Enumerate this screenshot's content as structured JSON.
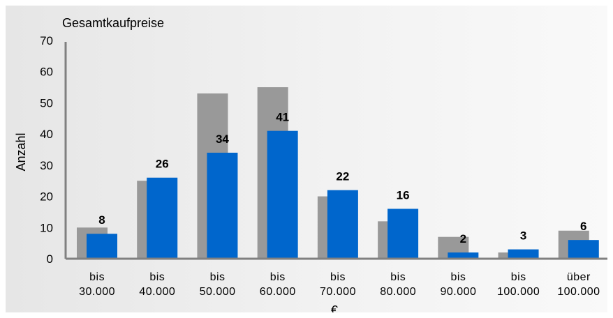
{
  "chart_data": {
    "type": "bar",
    "title": "Gesamtkaufpreise",
    "ylabel": "Anzahl",
    "xlabel": "€",
    "ylim": [
      0,
      70
    ],
    "yticks": [
      0,
      10,
      20,
      30,
      40,
      50,
      60,
      70
    ],
    "categories": [
      [
        "bis",
        "30.000"
      ],
      [
        "bis",
        "40.000"
      ],
      [
        "bis",
        "50.000"
      ],
      [
        "bis",
        "60.000"
      ],
      [
        "bis",
        "70.000"
      ],
      [
        "bis",
        "80.000"
      ],
      [
        "bis",
        "90.000"
      ],
      [
        "bis",
        "100.000"
      ],
      [
        "über",
        "100.000"
      ]
    ],
    "series": [
      {
        "color": "#999999",
        "values": [
          10,
          25,
          53,
          55,
          20,
          12,
          7,
          2,
          9
        ]
      },
      {
        "color": "#0066cc",
        "values": [
          8,
          26,
          34,
          41,
          22,
          16,
          2,
          3,
          6
        ],
        "labels": [
          "8",
          "26",
          "34",
          "41",
          "22",
          "16",
          "2",
          "3",
          "6"
        ]
      }
    ],
    "grid": false,
    "legend": "none"
  }
}
